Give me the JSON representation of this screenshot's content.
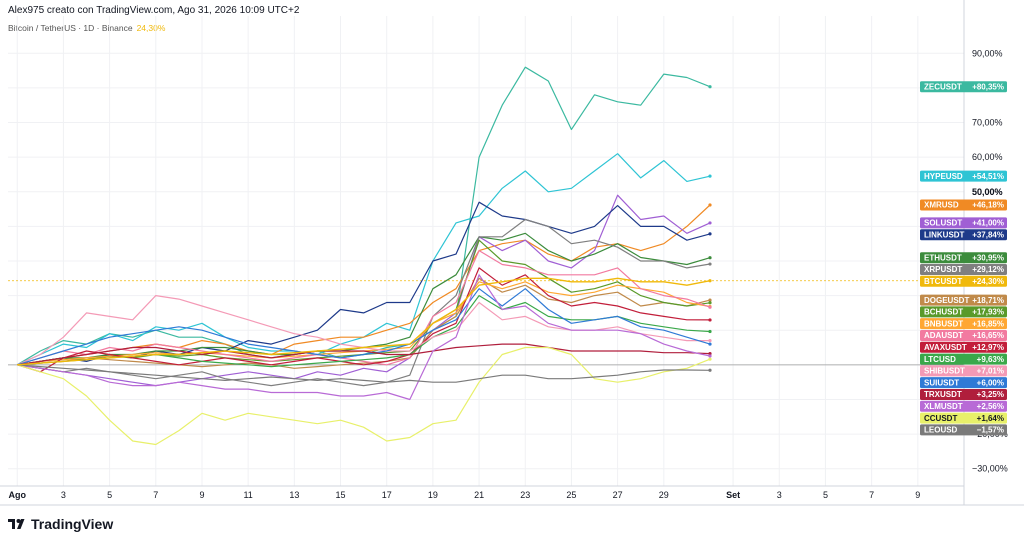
{
  "header": {
    "credit": "Alex975 creato con TradingView.com, Ago 31, 2026 10:09 UTC+2",
    "symbol": "Bitcoin / TetherUS · 1D · Binance",
    "symbol_change": "24,30%"
  },
  "brand": {
    "name": "TradingView",
    "icon": "tradingview-logo-icon"
  },
  "chart_data": {
    "type": "line",
    "y_unit": "%",
    "ylim": [
      -35,
      95
    ],
    "y_ticks": [
      {
        "value": 90,
        "label": "90,00%"
      },
      {
        "value": 70,
        "label": "70,00%"
      },
      {
        "value": 60,
        "label": "60,00%"
      },
      {
        "value": 50,
        "label": "50,00%"
      },
      {
        "value": -20,
        "label": "−20,00%"
      },
      {
        "value": -30,
        "label": "−30,00%"
      }
    ],
    "x_ticks": [
      {
        "day": 1,
        "label": "Ago"
      },
      {
        "day": 3,
        "label": "3"
      },
      {
        "day": 5,
        "label": "5"
      },
      {
        "day": 7,
        "label": "7"
      },
      {
        "day": 9,
        "label": "9"
      },
      {
        "day": 11,
        "label": "11"
      },
      {
        "day": 13,
        "label": "13"
      },
      {
        "day": 15,
        "label": "15"
      },
      {
        "day": 17,
        "label": "17"
      },
      {
        "day": 19,
        "label": "19"
      },
      {
        "day": 21,
        "label": "21"
      },
      {
        "day": 23,
        "label": "23"
      },
      {
        "day": 25,
        "label": "25"
      },
      {
        "day": 27,
        "label": "27"
      },
      {
        "day": 29,
        "label": "29"
      },
      {
        "day": 32,
        "label": "Set"
      },
      {
        "day": 34,
        "label": "3"
      },
      {
        "day": 36,
        "label": "5"
      },
      {
        "day": 38,
        "label": "7"
      },
      {
        "day": 40,
        "label": "9"
      }
    ],
    "x": [
      1,
      2,
      3,
      4,
      5,
      6,
      7,
      8,
      9,
      10,
      11,
      12,
      13,
      14,
      15,
      16,
      17,
      18,
      19,
      20,
      21,
      22,
      23,
      24,
      25,
      26,
      27,
      28,
      29,
      30,
      31
    ],
    "series": [
      {
        "name": "ZECUSDT",
        "label": "+80,35%",
        "color": "#3bb9a0",
        "values": [
          0,
          4,
          7,
          6,
          9,
          8,
          10,
          8,
          8,
          6,
          3,
          2,
          3,
          4,
          2,
          3,
          5,
          6,
          10,
          14,
          60,
          75,
          86,
          82,
          68,
          78,
          76,
          75,
          84,
          83,
          80.35
        ]
      },
      {
        "name": "HYPEUSD",
        "label": "+54,51%",
        "color": "#2ec4d4",
        "values": [
          0,
          3,
          6,
          5,
          9,
          7,
          11,
          10,
          12,
          8,
          5,
          4,
          4,
          3,
          6,
          8,
          12,
          10,
          30,
          41,
          43,
          51,
          56,
          50,
          51,
          56,
          61,
          54,
          59,
          53,
          54.51
        ]
      },
      {
        "name": "XMRUSD",
        "label": "+46,18%",
        "color": "#f08a24",
        "values": [
          0,
          1,
          2,
          3,
          4,
          5,
          6,
          5,
          7,
          6,
          4,
          3,
          6,
          7,
          8,
          8,
          10,
          12,
          18,
          22,
          33,
          35,
          36,
          32,
          30,
          34,
          35,
          33,
          35,
          40,
          46.18
        ]
      },
      {
        "name": "SOLUSDT",
        "label": "+41,00%",
        "color": "#a05fd4",
        "values": [
          0,
          -1,
          -2,
          -3,
          -4,
          -5,
          -6,
          -5,
          -4,
          -3,
          -2,
          -3,
          -4,
          -2,
          -3,
          -1,
          -2,
          2,
          10,
          15,
          37,
          33,
          36,
          30,
          28,
          33,
          49,
          42,
          43,
          38,
          41.0
        ]
      },
      {
        "name": "LINKUSDT",
        "label": "+37,84%",
        "color": "#1e3a8a",
        "values": [
          0,
          1,
          2,
          1,
          3,
          2,
          4,
          3,
          5,
          4,
          7,
          6,
          8,
          10,
          16,
          15,
          18,
          18,
          30,
          32,
          47,
          43,
          42,
          40,
          38,
          40,
          46,
          40,
          40,
          36,
          37.84
        ]
      },
      {
        "name": "ETHUSDT",
        "label": "+30,95%",
        "color": "#3c8c3c",
        "values": [
          0,
          1,
          2,
          2,
          3,
          3,
          4,
          4,
          5,
          5,
          4,
          3,
          3,
          4,
          4,
          5,
          6,
          8,
          22,
          26,
          37,
          36,
          38,
          33,
          30,
          32,
          35,
          31,
          30,
          29,
          30.95
        ]
      },
      {
        "name": "XRPUSDT",
        "label": "+29,12%",
        "color": "#7f7f7f",
        "values": [
          0,
          -1,
          -2,
          -1,
          -2,
          -3,
          -4,
          -3,
          -2,
          -4,
          -5,
          -6,
          -5,
          -4,
          -5,
          -6,
          -5,
          -3,
          14,
          20,
          37,
          37,
          42,
          40,
          35,
          36,
          34,
          30,
          30,
          28,
          29.12
        ]
      },
      {
        "name": "BTCUSDT",
        "label": "+24,30%",
        "color": "#f0b90b",
        "values": [
          0,
          0.5,
          1,
          1.5,
          2,
          2.5,
          3,
          3,
          3.5,
          4,
          3.5,
          3,
          3.5,
          4,
          4.5,
          5,
          5.5,
          6,
          12,
          16,
          23,
          24,
          25,
          25,
          24,
          24,
          25,
          24,
          24,
          23,
          24.3
        ]
      },
      {
        "name": "DOGEUSDT",
        "label": "+18,71%",
        "color": "#c08a4a",
        "values": [
          0,
          0.5,
          1,
          2,
          1.5,
          1,
          0.5,
          0,
          -0.5,
          0,
          0.5,
          0,
          -1,
          -0.5,
          0,
          0.5,
          1,
          2,
          10,
          14,
          25,
          21,
          23,
          19,
          18,
          20,
          21,
          17,
          18,
          17,
          18.71
        ]
      },
      {
        "name": "BCHUSDT",
        "label": "+17,93%",
        "color": "#5a9a2a",
        "values": [
          0,
          1,
          2,
          1.5,
          2.5,
          2,
          3,
          2.5,
          3,
          2,
          1.5,
          1,
          1.5,
          2,
          2.5,
          3,
          3.5,
          4,
          12,
          16,
          36,
          30,
          29,
          25,
          21,
          22,
          24,
          20,
          18,
          17,
          17.93
        ]
      },
      {
        "name": "BNBUSDT",
        "label": "+16,85%",
        "color": "#ffa733",
        "values": [
          0,
          1,
          1.5,
          2,
          2.5,
          3,
          3.5,
          3,
          3.5,
          3,
          2.5,
          2,
          2.5,
          3,
          3.5,
          4,
          4.5,
          5,
          12,
          15,
          24,
          22,
          24,
          21,
          20,
          21,
          23,
          22,
          21,
          18,
          16.85
        ]
      },
      {
        "name": "ADAUSDT",
        "label": "+16,65%",
        "color": "#f27aa0",
        "values": [
          0,
          2,
          4,
          3,
          5,
          4,
          6,
          5,
          4,
          3,
          2,
          1,
          2,
          3,
          2,
          1,
          0,
          2,
          14,
          18,
          33,
          29,
          28,
          26,
          26,
          26,
          28,
          22,
          20,
          19,
          16.65
        ]
      },
      {
        "name": "AVAXUSDT",
        "label": "+12,97%",
        "color": "#c21e3a",
        "values": [
          0,
          -2,
          2,
          4,
          3,
          2,
          1,
          0,
          1,
          2,
          1,
          0,
          1,
          2,
          1,
          0,
          1,
          3,
          9,
          12,
          28,
          23,
          26,
          20,
          17,
          18,
          17,
          15,
          14,
          13,
          12.97
        ]
      },
      {
        "name": "LTCUSD",
        "label": "+9,63%",
        "color": "#3aa84a",
        "values": [
          0,
          0.5,
          1,
          1.5,
          2,
          2.5,
          3,
          2,
          1,
          0.5,
          0,
          -0.5,
          0,
          0.5,
          1,
          1.5,
          2,
          3,
          8,
          11,
          20,
          16,
          18,
          14,
          13,
          13,
          14,
          12,
          11,
          10,
          9.63
        ]
      },
      {
        "name": "SHIBUSDT",
        "label": "+7,01%",
        "color": "#f49ab6",
        "values": [
          0,
          3,
          8,
          15,
          14,
          13,
          20,
          19,
          17,
          15,
          13,
          11,
          9,
          8,
          6,
          5,
          4,
          4,
          8,
          10,
          18,
          13,
          14,
          11,
          10,
          10,
          11,
          9,
          8,
          7,
          7.01
        ]
      },
      {
        "name": "SUIUSDT",
        "label": "+6,00%",
        "color": "#2f7ad6",
        "values": [
          0,
          2,
          4,
          6,
          8,
          9,
          10,
          11,
          10,
          8,
          6,
          5,
          4,
          3,
          2,
          3,
          4,
          6,
          10,
          13,
          22,
          17,
          22,
          16,
          12,
          13,
          14,
          11,
          10,
          8,
          6.0
        ]
      },
      {
        "name": "TRXUSDT",
        "label": "+3,25%",
        "color": "#b01e3c",
        "values": [
          0,
          1,
          2,
          3,
          4,
          5,
          5,
          4,
          3,
          4,
          3,
          2,
          3,
          4,
          4,
          4,
          3,
          3,
          4,
          5,
          5.5,
          6,
          6,
          5,
          4,
          4,
          4,
          4,
          3.5,
          3.5,
          3.25
        ]
      },
      {
        "name": "XLMUSDT",
        "label": "+2,56%",
        "color": "#b86ad6",
        "values": [
          0,
          -1,
          -2,
          -3,
          -5,
          -6,
          -6,
          -5,
          -6,
          -7,
          -7,
          -8,
          -8,
          -8,
          -9,
          -9,
          -8,
          -10,
          4,
          8,
          26,
          16,
          17,
          12,
          10,
          10,
          10,
          9,
          6,
          4,
          2.56
        ]
      },
      {
        "name": "CCUSDT",
        "label": "+1,64%",
        "color": "#e8f06a",
        "values": [
          0,
          -2,
          -4,
          -9,
          -16,
          -22,
          -23,
          -19,
          -14,
          -16,
          -14,
          -15,
          -16,
          -17,
          -16,
          -18,
          -22,
          -21,
          -17,
          -16,
          -5,
          3,
          5,
          5,
          3,
          -4,
          -5,
          -4,
          -2,
          -1,
          1.64
        ]
      },
      {
        "name": "LEOUSD",
        "label": "−1,57%",
        "color": "#7a7a7a",
        "values": [
          0,
          -0.5,
          -1,
          -1.5,
          -2,
          -2.5,
          -3,
          -3.5,
          -4,
          -4.5,
          -4,
          -3.5,
          -4,
          -4.5,
          -4,
          -4.5,
          -5,
          -4.5,
          -5,
          -5,
          -4,
          -3,
          -3,
          -4,
          -4,
          -3.5,
          -3,
          -2,
          -1.5,
          -1.5,
          -1.57
        ]
      }
    ],
    "axis_badge": "50,00%",
    "reference_line": {
      "value": 24.3,
      "color": "#f0b90b"
    },
    "zero_line_color": "#9a9a9a"
  }
}
